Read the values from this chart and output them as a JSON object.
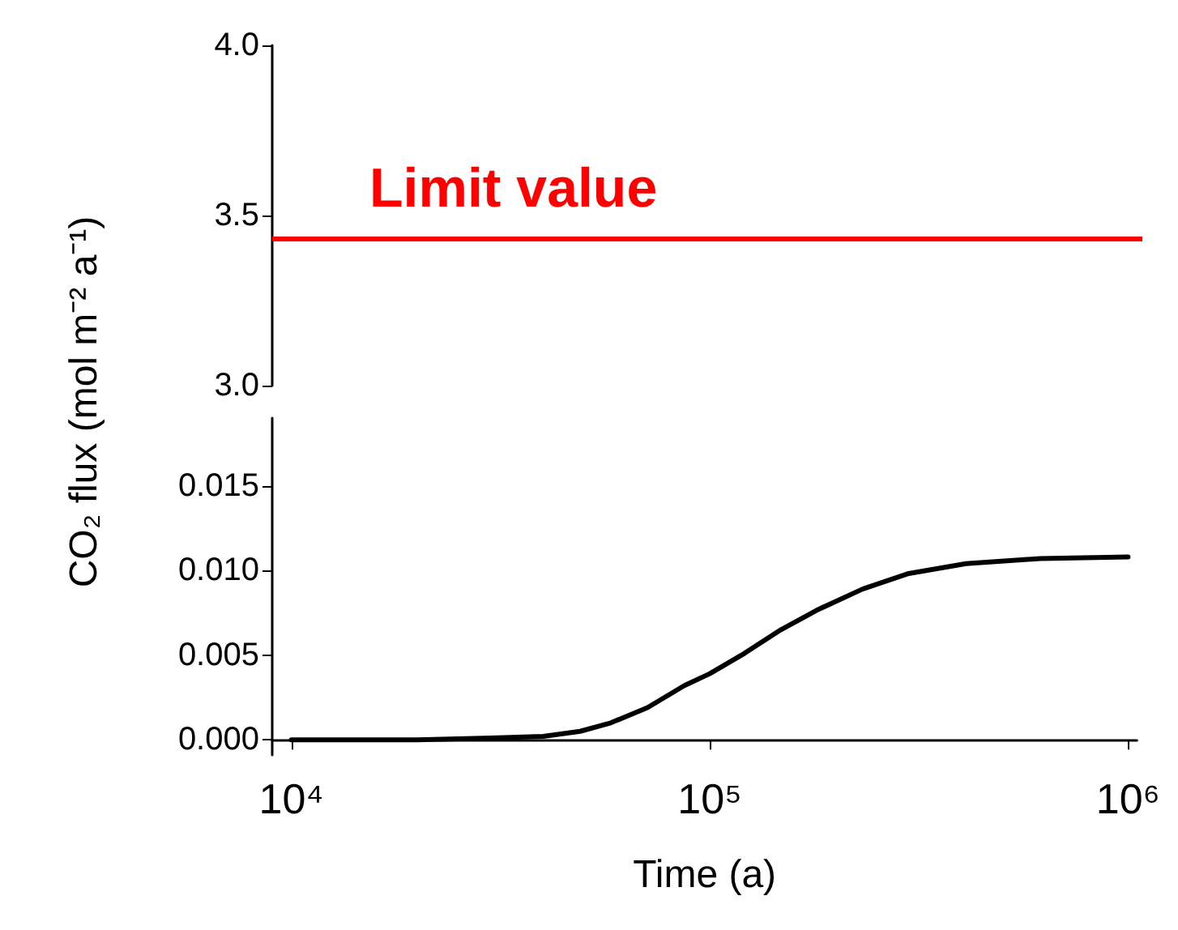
{
  "chart_data": [
    {
      "type": "line",
      "xlim": [
        9000,
        1050000
      ],
      "log": "x",
      "ylim": [
        3.0,
        4.0
      ],
      "yticks": [
        {
          "value": 3.0,
          "label": "3.0"
        },
        {
          "value": 3.5,
          "label": "3.5"
        },
        {
          "value": 4.0,
          "label": "4.0"
        }
      ],
      "tick_labels": "y",
      "grid": false,
      "ref_lines": [
        {
          "axis": "y",
          "value": 3.43,
          "label": "Limit value",
          "color": "#ff0000",
          "line_style": "solid"
        }
      ]
    },
    {
      "type": "line",
      "xlabel": "Time (a)",
      "ylabel": "CO₂ flux (mol m⁻² a⁻¹)",
      "log": "x",
      "xlim": [
        9000,
        1050000
      ],
      "xticks": [
        {
          "value": 10000,
          "label": "10⁴"
        },
        {
          "value": 100000,
          "label": "10⁵"
        },
        {
          "value": 1000000,
          "label": "10⁶"
        }
      ],
      "ylim": [
        -0.0009,
        0.019
      ],
      "yticks": [
        {
          "value": 0,
          "label": "0.000"
        },
        {
          "value": 0.005,
          "label": "0.005"
        },
        {
          "value": 0.01,
          "label": "0.010"
        },
        {
          "value": 0.015,
          "label": "0.015"
        }
      ],
      "grid": false,
      "marker": "none",
      "line_style": "solid",
      "series": [
        {
          "color": "#000000",
          "x": [
            10000,
            20000,
            30000,
            40000,
            49000,
            58000,
            71000,
            87000,
            100000,
            121000,
            148000,
            182000,
            232000,
            297000,
            410000,
            616000,
            1000000
          ],
          "values": [
            0,
            0,
            0.0001,
            0.0002,
            0.0005,
            0.001,
            0.0019,
            0.0032,
            0.0039,
            0.0051,
            0.0065,
            0.0077,
            0.0089,
            0.0098,
            0.0104,
            0.0107,
            0.0108
          ]
        }
      ]
    }
  ]
}
